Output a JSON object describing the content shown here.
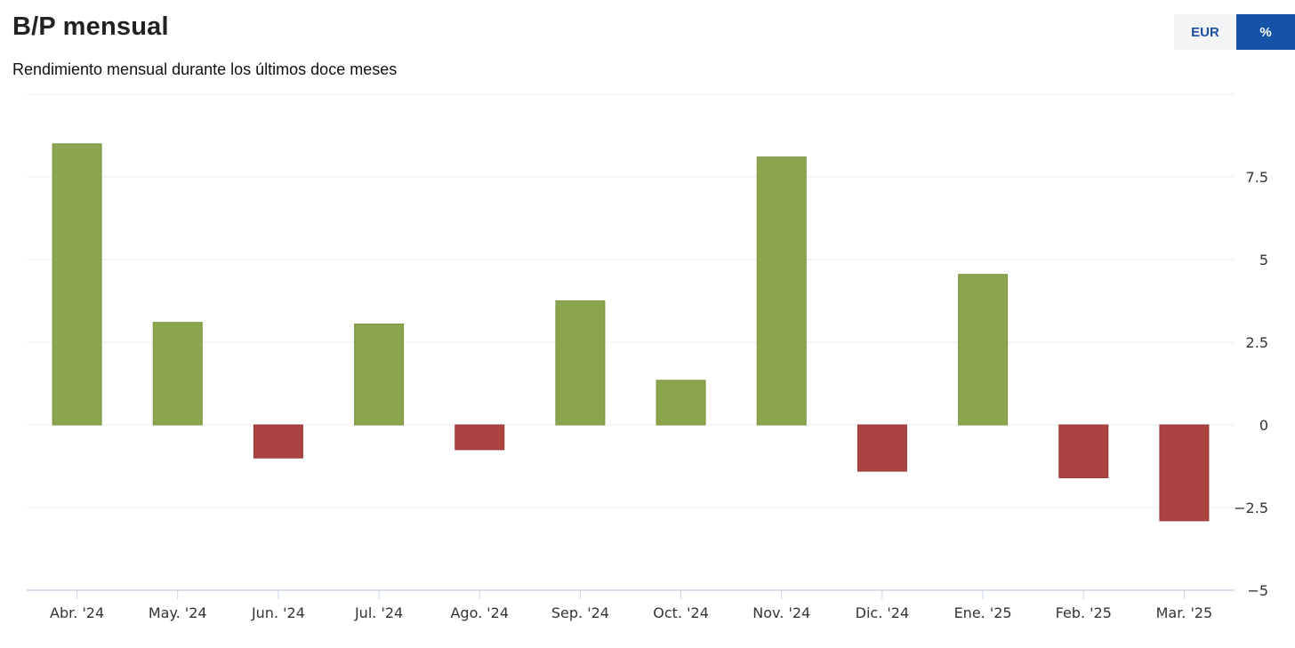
{
  "header": {
    "title": "B/P mensual",
    "subtitle": "Rendimiento mensual durante los últimos doce meses"
  },
  "toggle": {
    "options": [
      "EUR",
      "%"
    ],
    "selected": "%"
  },
  "colors": {
    "positive": "#8aa54d",
    "positive_border": "#7b9441",
    "negative": "#ab4441",
    "negative_border": "#963a37",
    "grid": "#eeeeee",
    "axis": "#c9d3e6"
  },
  "chart_data": {
    "type": "bar",
    "categories": [
      "Abr. '24",
      "May. '24",
      "Jun. '24",
      "Jul. '24",
      "Ago. '24",
      "Sep. '24",
      "Oct. '24",
      "Nov. '24",
      "Dic. '24",
      "Ene. '25",
      "Feb. '25",
      "Mar. '25"
    ],
    "values": [
      8.5,
      3.1,
      -1.0,
      3.05,
      -0.75,
      3.75,
      1.35,
      8.1,
      -1.4,
      4.55,
      -1.6,
      -2.9
    ],
    "yticks": [
      -5,
      -2.5,
      0,
      2.5,
      5,
      7.5
    ],
    "ytick_labels": [
      "−5",
      "−2.5",
      "0",
      "2.5",
      "5",
      "7.5"
    ],
    "ylim": [
      -5,
      10
    ],
    "grid": true,
    "y_axis_side": "right",
    "title": "B/P mensual",
    "xlabel": "",
    "ylabel": ""
  }
}
